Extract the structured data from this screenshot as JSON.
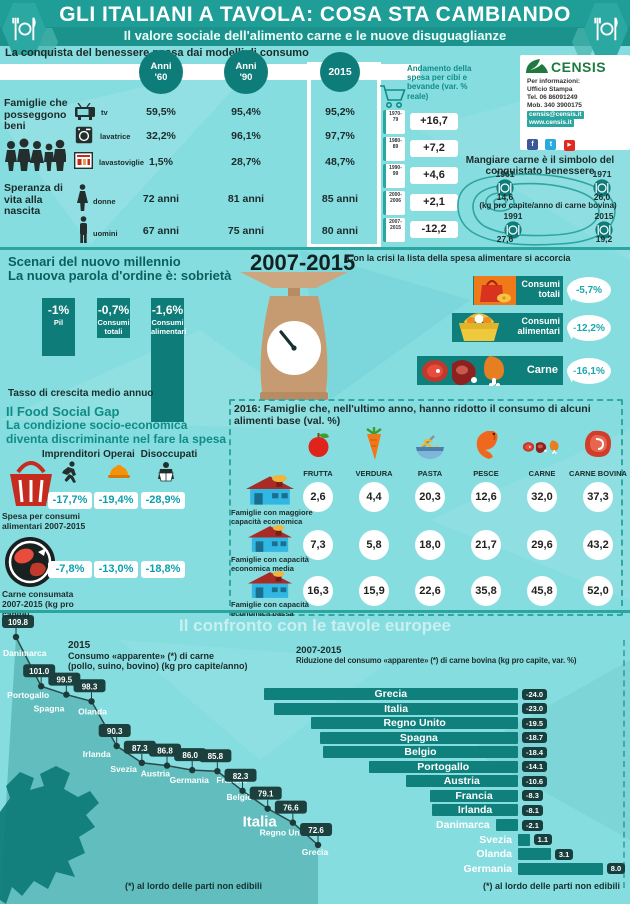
{
  "header": {
    "title": "GLI ITALIANI A TAVOLA: COSA STA CAMBIANDO",
    "subtitle": "Il valore sociale dell'alimento carne e le nuove disuguaglianze"
  },
  "section_benessere": {
    "title": "La conquista del benessere passa dai modelli di consumo",
    "columns": [
      "Anni '60",
      "Anni '90",
      "2015"
    ],
    "groups": [
      {
        "label": "Famiglie che posseggono beni",
        "rows": [
          {
            "icon": "tv-icon",
            "label": "tv",
            "values": [
              "59,5%",
              "95,4%",
              "95,2%"
            ]
          },
          {
            "icon": "washing-machine-icon",
            "label": "lavatrice",
            "values": [
              "32,2%",
              "96,1%",
              "97,7%"
            ]
          },
          {
            "icon": "dishwasher-icon",
            "label": "lavastoviglie",
            "values": [
              "1,5%",
              "28,7%",
              "48,7%"
            ]
          }
        ]
      },
      {
        "label": "Speranza di vita alla nascita",
        "rows": [
          {
            "icon": "woman-icon",
            "label": "donne",
            "values": [
              "72 anni",
              "81 anni",
              "85 anni"
            ]
          },
          {
            "icon": "man-icon",
            "label": "uomini",
            "values": [
              "67 anni",
              "75 anni",
              "80 anni"
            ]
          }
        ]
      }
    ]
  },
  "spesa_trend": {
    "title": "Andamento della spesa per cibi e bevande (var. % reale)",
    "items": [
      {
        "period": "1970-79",
        "value": "+16,7"
      },
      {
        "period": "1980-89",
        "value": "+7,2"
      },
      {
        "period": "1990-99",
        "value": "+4,6"
      },
      {
        "period": "2000-2006",
        "value": "+2,1"
      },
      {
        "period": "2007-2015",
        "value": "-12,2"
      }
    ]
  },
  "censis": {
    "logo": "CENSIS",
    "contact_intro": "Per informazioni:",
    "contact_lines": [
      "Ufficio Stampa",
      "Tel. 06 86091249",
      "Mob. 340 3900175"
    ],
    "email": "censis@censis.it",
    "website": "www.censis.it",
    "socials": [
      "facebook",
      "twitter",
      "youtube"
    ]
  },
  "carne_simbolo": {
    "title": "Mangiare carne è il simbolo del conquistato benessere",
    "unit": "(kg pro capite/anno di carne bovina)",
    "points": [
      {
        "year": "1961",
        "value": "14,6"
      },
      {
        "year": "1971",
        "value": "26,0"
      },
      {
        "year": "1991",
        "value": "27,6"
      },
      {
        "year": "2015",
        "value": "19,2"
      }
    ]
  },
  "sobrieta": {
    "title1": "Scenari del nuovo millennio",
    "title2": "La nuova parola d'ordine è: sobrietà",
    "period": "2007-2015",
    "bars": [
      {
        "value": "-1%",
        "label": "Pil"
      },
      {
        "value": "-0,7%",
        "label": "Consumi totali"
      },
      {
        "value": "-1,6%",
        "label": "Consumi alimentari"
      }
    ],
    "footnote": "Tasso di crescita medio annuo"
  },
  "crisi": {
    "title": "Con la crisi la lista della spesa alimentare si accorcia",
    "rows": [
      {
        "icon": "shopping-bag-icon",
        "label": "Consumi totali",
        "value": "-5,7%"
      },
      {
        "icon": "basket-icon",
        "label": "Consumi alimentari",
        "value": "-12,2%"
      },
      {
        "icon": "meat-icon",
        "label": "Carne",
        "value": "-16,1%"
      }
    ]
  },
  "food_social_gap": {
    "title": "Il Food Social Gap",
    "subtitle": "La condizione socio-economica diventa discriminante nel fare la spesa",
    "columns": [
      "Imprenditori",
      "Operai",
      "Disoccupati"
    ],
    "rows": [
      {
        "label": "Spesa per consumi alimentari 2007-2015",
        "values": [
          "-17,7%",
          "-19,4%",
          "-28,9%"
        ]
      },
      {
        "label": "Carne consumata 2007-2015 (kg pro capite)",
        "values": [
          "-7,8%",
          "-13,0%",
          "-18,8%"
        ]
      }
    ]
  },
  "riduzione_2016": {
    "title": "2016: Famiglie che, nell'ultimo anno, hanno ridotto il consumo di alcuni alimenti base (val. %)",
    "foods": [
      "FRUTTA",
      "VERDURA",
      "PASTA",
      "PESCE",
      "CARNE",
      "CARNE BOVINA"
    ],
    "rows": [
      {
        "label": "Famiglie con maggiore capacità economica",
        "values": [
          "2,6",
          "4,4",
          "20,3",
          "12,6",
          "32,0",
          "37,3"
        ]
      },
      {
        "label": "Famiglie con capacità economica media",
        "values": [
          "7,3",
          "5,8",
          "18,0",
          "21,7",
          "29,6",
          "43,2"
        ]
      },
      {
        "label": "Famiglie con capacità economica bassa",
        "values": [
          "16,3",
          "15,9",
          "22,6",
          "35,8",
          "45,8",
          "52,0"
        ]
      }
    ]
  },
  "europa": {
    "title": "Il confronto con le tavole europee",
    "left_title_1": "2015",
    "left_title_2": "Consumo «apparente» (*) di carne",
    "left_title_3": "(pollo, suino, bovino) (kg pro capite/anno)",
    "right_title_1": "2007-2015",
    "right_title_2": "Riduzione del consumo «apparente» (*) di carne bovina (kg pro capite, var. %)",
    "footnote_left": "(*) al lordo delle parti non edibili",
    "footnote_right": "(*) al lordo delle parti non edibili"
  },
  "chart_data": [
    {
      "type": "line",
      "title": "2015 Consumo «apparente» (*) di carne (pollo, suino, bovino) (kg pro capite/anno)",
      "categories": [
        "Danimarca",
        "Portogallo",
        "Spagna",
        "Olanda",
        "Irlanda",
        "Svezia",
        "Austria",
        "Germania",
        "Francia",
        "Belgio",
        "Italia",
        "Regno Unito",
        "Grecia"
      ],
      "values": [
        109.8,
        101.0,
        99.5,
        98.3,
        90.3,
        87.3,
        86.8,
        86.0,
        85.8,
        82.3,
        79.1,
        76.6,
        72.6
      ],
      "highlight": "Italia",
      "ylim": [
        72.6,
        109.8
      ]
    },
    {
      "type": "bar",
      "title": "2007-2015 Riduzione del consumo «apparente» (*) di carne bovina (kg pro capite, var. %)",
      "categories": [
        "Grecia",
        "Italia",
        "Regno Unito",
        "Spagna",
        "Belgio",
        "Portogallo",
        "Austria",
        "Francia",
        "Irlanda",
        "Danimarca",
        "Svezia",
        "Olanda",
        "Germania"
      ],
      "values": [
        -24.0,
        -23.0,
        -19.5,
        -18.7,
        -18.4,
        -14.1,
        -10.6,
        -8.3,
        -8.1,
        -2.1,
        1.1,
        3.1,
        8.0
      ],
      "orientation": "horizontal"
    }
  ],
  "colors": {
    "background_cyan": "#86dde0",
    "header_teal": "#1f9e97",
    "dark_teal": "#0e7d79",
    "tag_dark": "#173f3d",
    "accent_teal_text": "#0f8c86",
    "value_teal": "#0b9fae",
    "censis_green": "#1e7a3f",
    "orange": "#ef7a1a",
    "red": "#d8331f"
  }
}
